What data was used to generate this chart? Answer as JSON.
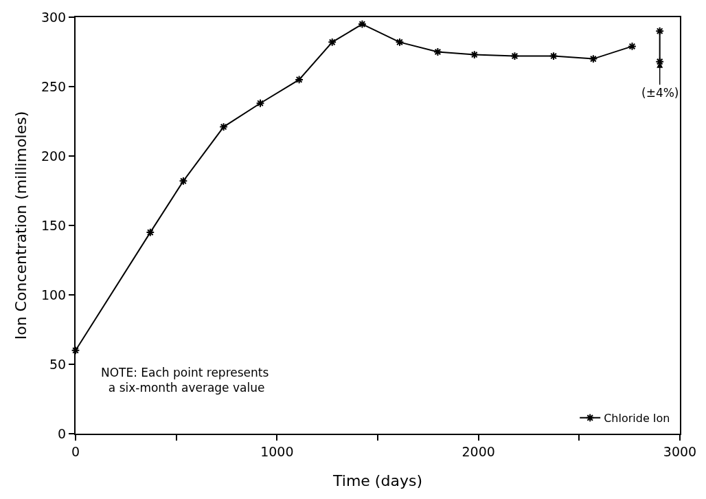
{
  "chart_data": {
    "type": "line",
    "xlabel": "Time (days)",
    "ylabel": "Ion Concentration (millimoles)",
    "xlim": [
      0,
      3000
    ],
    "ylim": [
      0,
      300
    ],
    "xticks": [
      0,
      {
        "value": 500,
        "label": null
      },
      1000,
      {
        "value": 1500,
        "label": null
      },
      2000,
      {
        "value": 2500,
        "label": null
      },
      3000
    ],
    "yticks": [
      0,
      50,
      100,
      150,
      200,
      250,
      300
    ],
    "grid": false,
    "legend": "bottom right",
    "marker": "cross",
    "line_style": "solid",
    "series": [
      {
        "name": "Chloride Ion",
        "color": "#000000",
        "x": [
          0,
          371,
          535,
          735,
          917,
          1110,
          1274,
          1423,
          1609,
          1798,
          1980,
          2180,
          2373,
          2570,
          2763
        ],
        "values": [
          60,
          145,
          182,
          221,
          238,
          255,
          282,
          295,
          282,
          275,
          273,
          272,
          272,
          270,
          279
        ]
      },
      {
        "color": "#000000",
        "x": [
          2900,
          2900
        ],
        "values": [
          268,
          290
        ]
      }
    ],
    "annotations": [
      "NOTE: Each point represents\n  a six-month average value",
      {
        "text": "(±4%)",
        "x": 2900,
        "y": 268
      }
    ]
  }
}
